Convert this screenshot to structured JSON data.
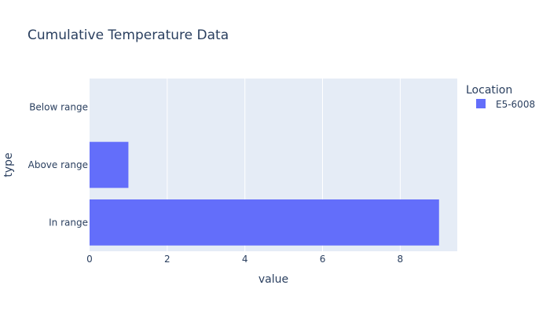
{
  "chart_data": {
    "type": "bar",
    "orientation": "horizontal",
    "title": "Cumulative Temperature Data",
    "xlabel": "value",
    "ylabel": "type",
    "categories": [
      "In range",
      "Above range",
      "Below range"
    ],
    "series": [
      {
        "name": "E5-6008",
        "values": [
          9,
          1,
          0
        ],
        "color": "#636efa"
      }
    ],
    "xlim": [
      0,
      9.47
    ],
    "xticks": [
      0,
      2,
      4,
      6,
      8
    ],
    "grid": true,
    "legend": {
      "title": "Location",
      "position": "top-right"
    },
    "colors": {
      "plot_background": "#e5ecf6",
      "gridline": "#ffffff",
      "text": "#2a3f5f"
    }
  }
}
